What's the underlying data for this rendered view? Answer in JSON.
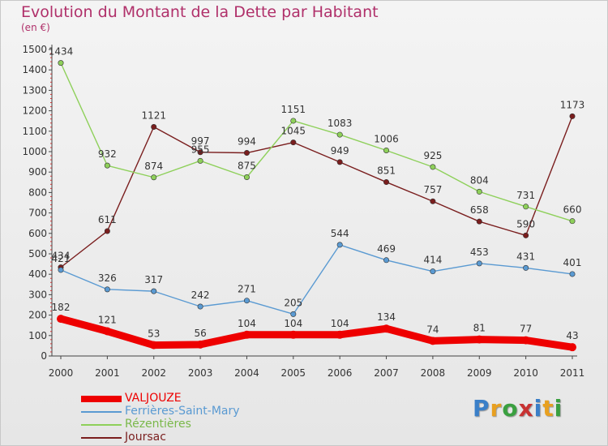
{
  "title": "Evolution du Montant de la Dette par Habitant",
  "subtitle": "(en €)",
  "logo": {
    "letters": [
      "P",
      "r",
      "o",
      "x",
      "i",
      "t",
      "i"
    ],
    "colors": [
      "#3a7fc8",
      "#e8a020",
      "#3aa040",
      "#c83232",
      "#3a7fc8",
      "#e8a020",
      "#3aa040"
    ]
  },
  "chart_data": {
    "type": "line",
    "categories": [
      "2000",
      "2001",
      "2002",
      "2003",
      "2004",
      "2005",
      "2006",
      "2007",
      "2008",
      "2009",
      "2010",
      "2011"
    ],
    "ylim": [
      0,
      1500
    ],
    "yticks": [
      0,
      100,
      200,
      300,
      400,
      500,
      600,
      700,
      800,
      900,
      1000,
      1100,
      1200,
      1300,
      1400,
      1500
    ],
    "grid": false,
    "legend_position": "bottom-left",
    "series": [
      {
        "name": "VALJOUZE",
        "color": "#ee0000",
        "values": [
          182,
          121,
          53,
          56,
          104,
          104,
          104,
          134,
          74,
          81,
          77,
          43
        ],
        "labels": [
          "182",
          "121",
          "53",
          "56",
          "104",
          "104",
          "104",
          "134",
          "74",
          "81",
          "77",
          "43"
        ]
      },
      {
        "name": "Ferrières-Saint-Mary",
        "color": "#5a9ad2",
        "values": [
          421,
          326,
          317,
          242,
          271,
          205,
          544,
          469,
          414,
          453,
          431,
          401
        ],
        "labels": [
          "421",
          "326",
          "317",
          "242",
          "271",
          "205",
          "544",
          "469",
          "414",
          "453",
          "431",
          "401"
        ]
      },
      {
        "name": "Rézentières",
        "color": "#8ed05a",
        "values": [
          1434,
          932,
          874,
          955,
          875,
          1151,
          1083,
          1006,
          925,
          804,
          731,
          660
        ],
        "labels": [
          "1434",
          "932",
          "874",
          "955",
          "875",
          "1151",
          "1083",
          "1006",
          "925",
          "804",
          "731",
          "660"
        ]
      },
      {
        "name": "Joursac",
        "color": "#7a1e1e",
        "values": [
          434,
          611,
          1121,
          997,
          994,
          1045,
          949,
          851,
          757,
          658,
          590,
          1173
        ],
        "labels": [
          "434",
          "611",
          "1121",
          "997",
          "994",
          "1045",
          "949",
          "851",
          "757",
          "658",
          "590",
          "1173"
        ]
      }
    ]
  }
}
